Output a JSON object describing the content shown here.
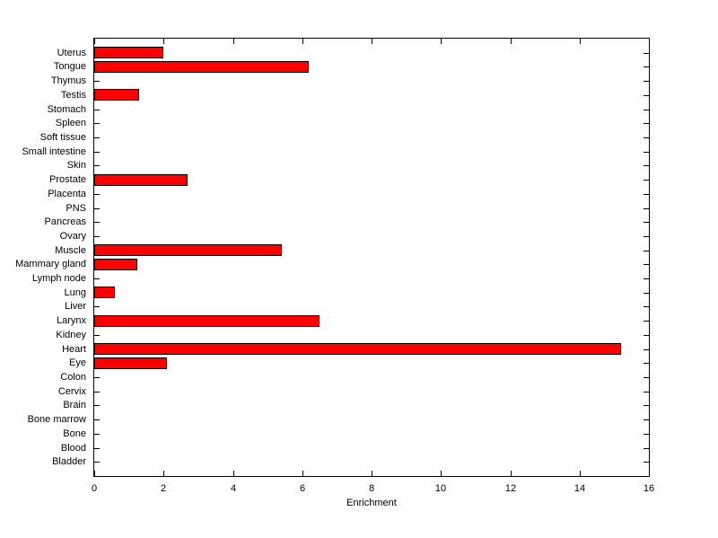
{
  "chart_data": {
    "type": "bar",
    "orientation": "horizontal",
    "title": "",
    "xlabel": "Enrichment",
    "ylabel": "",
    "categories": [
      "Uterus",
      "Tongue",
      "Thymus",
      "Testis",
      "Stomach",
      "Spleen",
      "Soft tissue",
      "Small intestine",
      "Skin",
      "Prostate",
      "Placenta",
      "PNS",
      "Pancreas",
      "Ovary",
      "Muscle",
      "Mammary gland",
      "Lymph node",
      "Lung",
      "Liver",
      "Larynx",
      "Kidney",
      "Heart",
      "Eye",
      "Colon",
      "Cervix",
      "Brain",
      "Bone marrow",
      "Bone",
      "Blood",
      "Bladder"
    ],
    "values": [
      2.0,
      6.2,
      0,
      1.3,
      0,
      0,
      0,
      0,
      0,
      2.7,
      0,
      0,
      0,
      0,
      5.4,
      1.25,
      0,
      0.6,
      0,
      6.5,
      0,
      15.2,
      2.1,
      0,
      0,
      0,
      0,
      0,
      0,
      0
    ],
    "xlim": [
      0,
      16
    ],
    "xticks": [
      0,
      2,
      4,
      6,
      8,
      10,
      12,
      14,
      16
    ],
    "grid": false,
    "legend": null,
    "bar_color": "#FF0000",
    "bar_edge_color": "#000000",
    "axis_color": "#000000",
    "background_color": "#FFFFFF"
  }
}
